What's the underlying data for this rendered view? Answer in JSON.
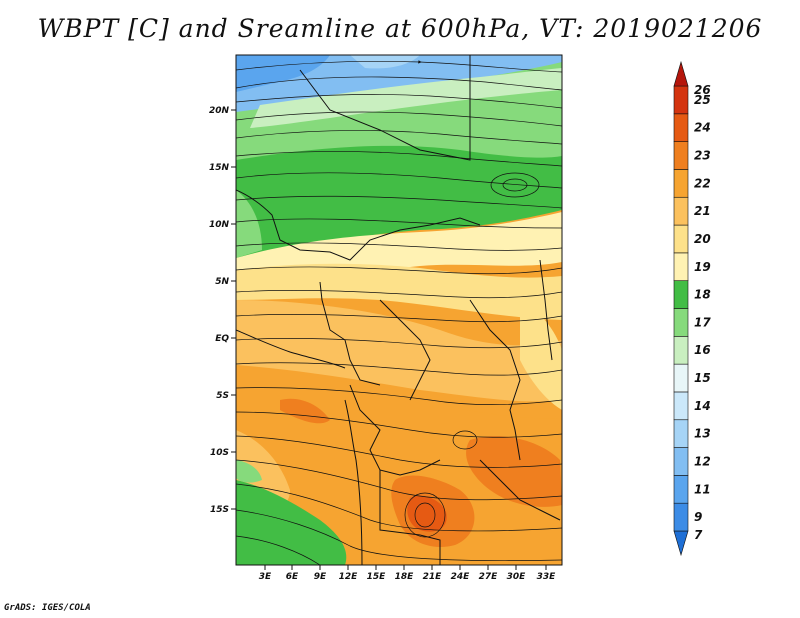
{
  "title": "WBPT [C] and Sreamline at 600hPa, VT: 2019021206",
  "credit": "GrADS: IGES/COLA",
  "map": {
    "lat_labels": [
      "20N",
      "15N",
      "10N",
      "5N",
      "EQ",
      "5S",
      "10S",
      "15S"
    ],
    "lon_labels": [
      "3E",
      "6E",
      "9E",
      "12E",
      "15E",
      "18E",
      "21E",
      "24E",
      "27E",
      "30E",
      "33E"
    ]
  },
  "colorbar": {
    "labels": [
      "7",
      "9",
      "11",
      "12",
      "13",
      "14",
      "15",
      "16",
      "17",
      "18",
      "19",
      "20",
      "21",
      "22",
      "23",
      "24",
      "25",
      "26"
    ],
    "colors": [
      "#1e6fd6",
      "#3c8ce6",
      "#5aa5ee",
      "#82bef2",
      "#a6d4f6",
      "#cbe8fa",
      "#e8f6f8",
      "#c9efc0",
      "#86da7c",
      "#42bd45",
      "#fff2b3",
      "#fde18a",
      "#fbc15e",
      "#f6a431",
      "#ef7f1f",
      "#e65a13",
      "#d43410",
      "#b5160c"
    ]
  }
}
